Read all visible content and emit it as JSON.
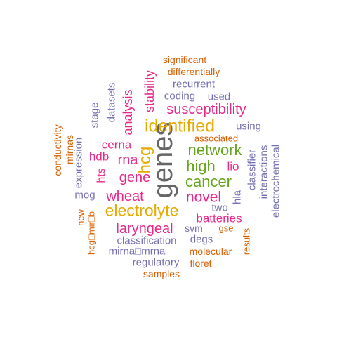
{
  "words": [
    {
      "text": "genes",
      "color": "#666666"
    },
    {
      "text": "identified",
      "color": "#e6ab02"
    },
    {
      "text": "electrolyte",
      "color": "#e6ab02"
    },
    {
      "text": "hcg",
      "color": "#e6ab02"
    },
    {
      "text": "susceptibility",
      "color": "#e7298a"
    },
    {
      "text": "network",
      "color": "#66a61e"
    },
    {
      "text": "high",
      "color": "#66a61e"
    },
    {
      "text": "cancer",
      "color": "#66a61e"
    },
    {
      "text": "novel",
      "color": "#e7298a"
    },
    {
      "text": "wheat",
      "color": "#e7298a"
    },
    {
      "text": "laryngeal",
      "color": "#e7298a"
    },
    {
      "text": "gene",
      "color": "#e7298a"
    },
    {
      "text": "rna",
      "color": "#e7298a"
    },
    {
      "text": "cerna",
      "color": "#e7298a"
    },
    {
      "text": "hdb",
      "color": "#e7298a"
    },
    {
      "text": "hts",
      "color": "#e7298a"
    },
    {
      "text": "analysis",
      "color": "#e7298a"
    },
    {
      "text": "stability",
      "color": "#e7298a"
    },
    {
      "text": "lio",
      "color": "#e7298a"
    },
    {
      "text": "batteries",
      "color": "#e7298a"
    },
    {
      "text": "significant",
      "color": "#d95f02"
    },
    {
      "text": "differentially",
      "color": "#d95f02"
    },
    {
      "text": "recurrent",
      "color": "#7570b3"
    },
    {
      "text": "coding",
      "color": "#7570b3"
    },
    {
      "text": "used",
      "color": "#7570b3"
    },
    {
      "text": "datasets",
      "color": "#7570b3"
    },
    {
      "text": "stage",
      "color": "#7570b3"
    },
    {
      "text": "using",
      "color": "#7570b3"
    },
    {
      "text": "associated",
      "color": "#d95f02"
    },
    {
      "text": "conductivity",
      "color": "#d95f02"
    },
    {
      "text": "mirnas",
      "color": "#d95f02"
    },
    {
      "text": "expression",
      "color": "#7570b3"
    },
    {
      "text": "classifier",
      "color": "#7570b3"
    },
    {
      "text": "interactions",
      "color": "#7570b3"
    },
    {
      "text": "electrochemical",
      "color": "#7570b3"
    },
    {
      "text": "hla",
      "color": "#7570b3"
    },
    {
      "text": "mog",
      "color": "#7570b3"
    },
    {
      "text": "two",
      "color": "#7570b3"
    },
    {
      "text": "new",
      "color": "#d95f02"
    },
    {
      "text": "hcg□mir□b",
      "color": "#d95f02"
    },
    {
      "text": "svm",
      "color": "#7570b3"
    },
    {
      "text": "gse",
      "color": "#d95f02"
    },
    {
      "text": "results",
      "color": "#d95f02"
    },
    {
      "text": "classification",
      "color": "#7570b3"
    },
    {
      "text": "degs",
      "color": "#7570b3"
    },
    {
      "text": "mirna□mrna",
      "color": "#7570b3"
    },
    {
      "text": "molecular",
      "color": "#d95f02"
    },
    {
      "text": "regulatory",
      "color": "#7570b3"
    },
    {
      "text": "floret",
      "color": "#d95f02"
    },
    {
      "text": "samples",
      "color": "#d95f02"
    }
  ]
}
